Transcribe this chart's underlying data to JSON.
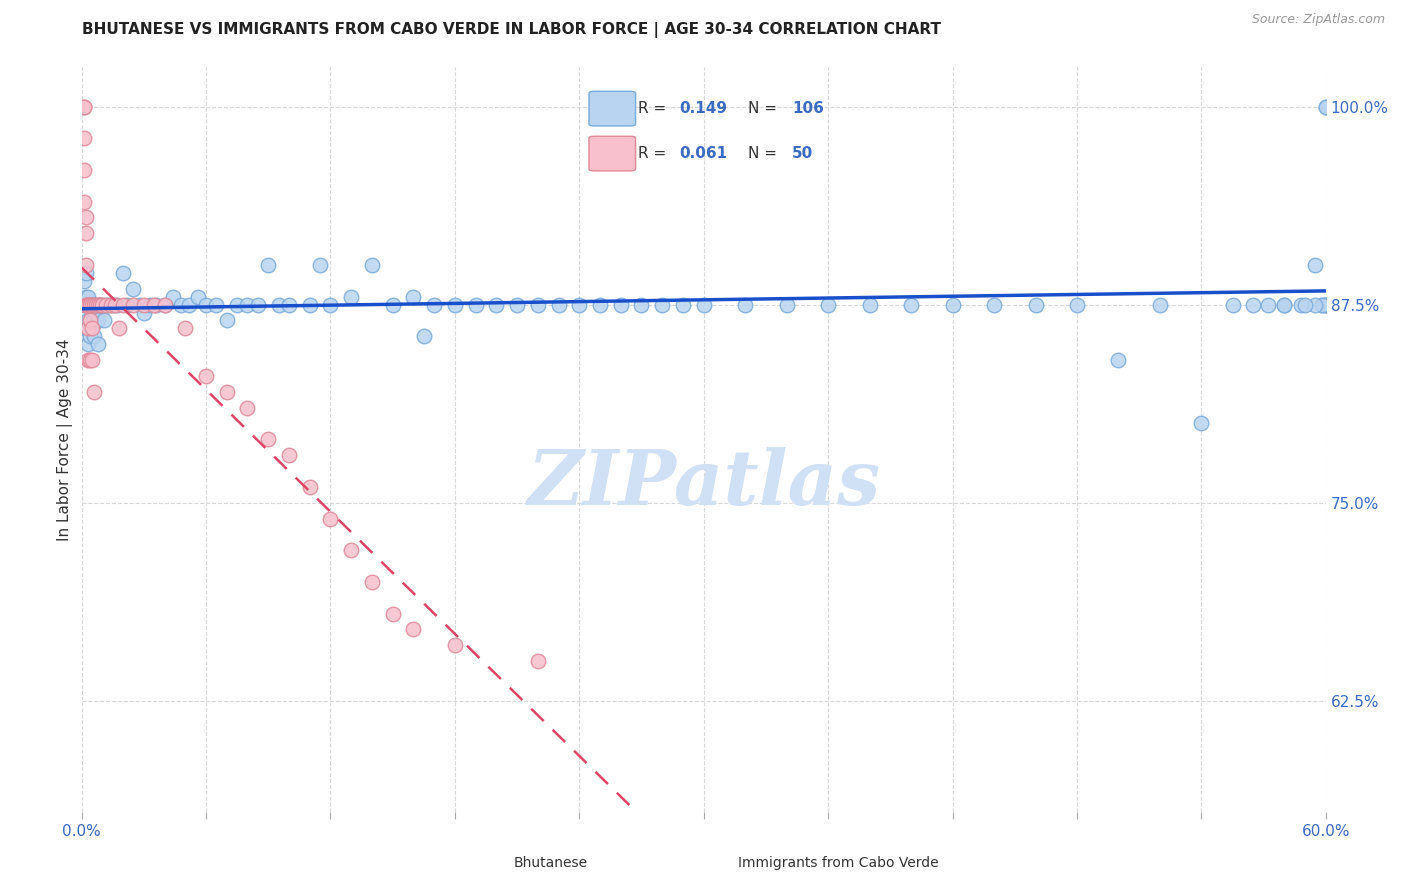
{
  "title": "BHUTANESE VS IMMIGRANTS FROM CABO VERDE IN LABOR FORCE | AGE 30-34 CORRELATION CHART",
  "source": "Source: ZipAtlas.com",
  "ylabel": "In Labor Force | Age 30-34",
  "right_yticks": [
    1.0,
    0.875,
    0.75,
    0.625
  ],
  "right_yticklabels": [
    "100.0%",
    "87.5%",
    "75.0%",
    "62.5%"
  ],
  "legend_blue_R": "0.149",
  "legend_blue_N": "106",
  "legend_pink_R": "0.061",
  "legend_pink_N": "50",
  "blue_scatter_color": "#b8d4f0",
  "blue_edge_color": "#7aaad8",
  "pink_scatter_color": "#f8c0cc",
  "pink_edge_color": "#e08898",
  "blue_line_color": "#1a4fcc",
  "pink_line_color": "#dd4466",
  "watermark": "ZIPatlas",
  "watermark_color": "#d0e0f5",
  "xlim": [
    0.0,
    0.6
  ],
  "ylim": [
    0.555,
    1.025
  ],
  "blue_x": [
    0.001,
    0.001,
    0.001,
    0.002,
    0.002,
    0.002,
    0.002,
    0.003,
    0.003,
    0.003,
    0.003,
    0.003,
    0.004,
    0.004,
    0.004,
    0.004,
    0.005,
    0.005,
    0.005,
    0.005,
    0.006,
    0.006,
    0.006,
    0.007,
    0.007,
    0.008,
    0.008,
    0.008,
    0.009,
    0.01,
    0.011,
    0.012,
    0.013,
    0.015,
    0.017,
    0.02,
    0.022,
    0.025,
    0.028,
    0.03,
    0.033,
    0.036,
    0.04,
    0.044,
    0.048,
    0.052,
    0.056,
    0.06,
    0.065,
    0.07,
    0.075,
    0.08,
    0.085,
    0.09,
    0.095,
    0.1,
    0.11,
    0.115,
    0.12,
    0.13,
    0.14,
    0.15,
    0.16,
    0.165,
    0.17,
    0.18,
    0.19,
    0.2,
    0.21,
    0.22,
    0.23,
    0.24,
    0.25,
    0.26,
    0.27,
    0.28,
    0.29,
    0.3,
    0.32,
    0.34,
    0.36,
    0.38,
    0.4,
    0.42,
    0.44,
    0.46,
    0.48,
    0.5,
    0.52,
    0.54,
    0.555,
    0.565,
    0.572,
    0.58,
    0.588,
    0.595,
    0.598,
    0.6,
    0.6,
    0.6,
    0.6,
    0.6,
    0.598,
    0.595,
    0.59,
    0.58
  ],
  "blue_y": [
    0.875,
    0.86,
    0.89,
    0.875,
    0.86,
    0.88,
    0.895,
    0.875,
    0.865,
    0.85,
    0.88,
    0.875,
    0.875,
    0.865,
    0.855,
    0.875,
    0.875,
    0.87,
    0.86,
    0.875,
    0.875,
    0.865,
    0.855,
    0.875,
    0.87,
    0.875,
    0.865,
    0.85,
    0.875,
    0.875,
    0.865,
    0.875,
    0.875,
    0.875,
    0.875,
    0.895,
    0.875,
    0.885,
    0.875,
    0.87,
    0.875,
    0.875,
    0.875,
    0.88,
    0.875,
    0.875,
    0.88,
    0.875,
    0.875,
    0.865,
    0.875,
    0.875,
    0.875,
    0.9,
    0.875,
    0.875,
    0.875,
    0.9,
    0.875,
    0.88,
    0.9,
    0.875,
    0.88,
    0.855,
    0.875,
    0.875,
    0.875,
    0.875,
    0.875,
    0.875,
    0.875,
    0.875,
    0.875,
    0.875,
    0.875,
    0.875,
    0.875,
    0.875,
    0.875,
    0.875,
    0.875,
    0.875,
    0.875,
    0.875,
    0.875,
    0.875,
    0.875,
    0.84,
    0.875,
    0.8,
    0.875,
    0.875,
    0.875,
    0.875,
    0.875,
    0.9,
    0.875,
    1.0,
    1.0,
    0.875,
    0.875,
    0.875,
    0.875,
    0.875,
    0.875,
    0.875
  ],
  "pink_x": [
    0.001,
    0.001,
    0.001,
    0.001,
    0.001,
    0.002,
    0.002,
    0.002,
    0.002,
    0.002,
    0.003,
    0.003,
    0.003,
    0.003,
    0.004,
    0.004,
    0.004,
    0.004,
    0.005,
    0.005,
    0.005,
    0.006,
    0.006,
    0.007,
    0.008,
    0.009,
    0.01,
    0.012,
    0.014,
    0.016,
    0.018,
    0.02,
    0.025,
    0.03,
    0.035,
    0.04,
    0.05,
    0.06,
    0.07,
    0.08,
    0.09,
    0.1,
    0.11,
    0.12,
    0.13,
    0.14,
    0.15,
    0.16,
    0.18,
    0.22
  ],
  "pink_y": [
    1.0,
    1.0,
    0.98,
    0.96,
    0.94,
    0.93,
    0.92,
    0.9,
    0.875,
    0.875,
    0.875,
    0.875,
    0.86,
    0.84,
    0.875,
    0.875,
    0.865,
    0.84,
    0.875,
    0.86,
    0.84,
    0.875,
    0.82,
    0.875,
    0.875,
    0.875,
    0.875,
    0.875,
    0.875,
    0.875,
    0.86,
    0.875,
    0.875,
    0.875,
    0.875,
    0.875,
    0.86,
    0.83,
    0.82,
    0.81,
    0.79,
    0.78,
    0.76,
    0.74,
    0.72,
    0.7,
    0.68,
    0.67,
    0.66,
    0.65
  ]
}
